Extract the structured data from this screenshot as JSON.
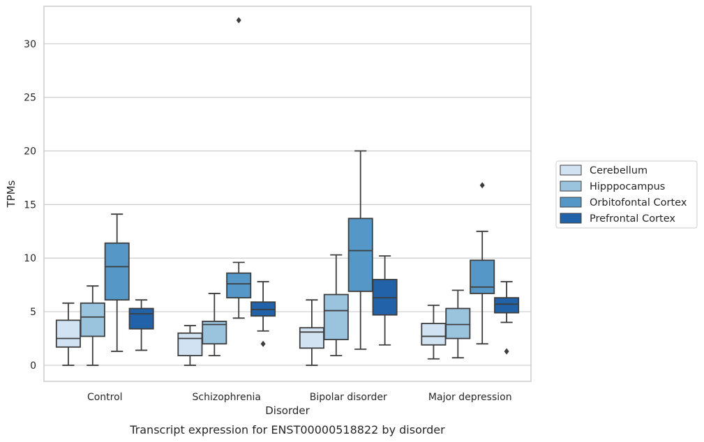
{
  "chart_data": {
    "type": "box",
    "xlabel": "Disorder",
    "ylabel": "TPMs",
    "caption": "Transcript expression for ENST00000518822 by disorder",
    "categories": [
      "Control",
      "Schizophrenia",
      "Bipolar disorder",
      "Major depression"
    ],
    "yticks": [
      "0",
      "5",
      "10",
      "15",
      "20",
      "25",
      "30"
    ],
    "ylim": [
      -1.5,
      33.5
    ],
    "grid": "horizontal",
    "legend_position": "right",
    "series": [
      {
        "name": "Cerebellum",
        "color": "#d1e2f2",
        "boxes": [
          {
            "whisker_low": 0.0,
            "q1": 1.7,
            "median": 2.5,
            "q3": 4.2,
            "whisker_high": 5.8,
            "outliers": []
          },
          {
            "whisker_low": 0.0,
            "q1": 0.9,
            "median": 2.5,
            "q3": 3.0,
            "whisker_high": 3.7,
            "outliers": []
          },
          {
            "whisker_low": 0.0,
            "q1": 1.6,
            "median": 3.1,
            "q3": 3.5,
            "whisker_high": 6.1,
            "outliers": []
          },
          {
            "whisker_low": 0.6,
            "q1": 1.9,
            "median": 2.7,
            "q3": 3.9,
            "whisker_high": 5.6,
            "outliers": []
          }
        ]
      },
      {
        "name": "Hipppocampus",
        "color": "#9ac3de",
        "boxes": [
          {
            "whisker_low": 0.0,
            "q1": 2.7,
            "median": 4.5,
            "q3": 5.8,
            "whisker_high": 7.4,
            "outliers": []
          },
          {
            "whisker_low": 0.9,
            "q1": 2.0,
            "median": 3.8,
            "q3": 4.1,
            "whisker_high": 6.7,
            "outliers": []
          },
          {
            "whisker_low": 0.9,
            "q1": 2.4,
            "median": 5.1,
            "q3": 6.6,
            "whisker_high": 10.3,
            "outliers": []
          },
          {
            "whisker_low": 0.7,
            "q1": 2.5,
            "median": 3.8,
            "q3": 5.3,
            "whisker_high": 7.0,
            "outliers": []
          }
        ]
      },
      {
        "name": "Orbitofontal Cortex",
        "color": "#5597c6",
        "boxes": [
          {
            "whisker_low": 1.3,
            "q1": 6.1,
            "median": 9.2,
            "q3": 11.4,
            "whisker_high": 14.1,
            "outliers": []
          },
          {
            "whisker_low": 4.4,
            "q1": 6.3,
            "median": 7.6,
            "q3": 8.6,
            "whisker_high": 9.6,
            "outliers": [
              32.2
            ]
          },
          {
            "whisker_low": 1.5,
            "q1": 6.9,
            "median": 10.7,
            "q3": 13.7,
            "whisker_high": 20.0,
            "outliers": []
          },
          {
            "whisker_low": 2.0,
            "q1": 6.7,
            "median": 7.3,
            "q3": 9.8,
            "whisker_high": 12.5,
            "outliers": [
              16.8
            ]
          }
        ]
      },
      {
        "name": "Prefrontal Cortex",
        "color": "#2262a8",
        "boxes": [
          {
            "whisker_low": 1.4,
            "q1": 3.4,
            "median": 4.8,
            "q3": 5.3,
            "whisker_high": 6.1,
            "outliers": []
          },
          {
            "whisker_low": 3.2,
            "q1": 4.6,
            "median": 5.2,
            "q3": 5.9,
            "whisker_high": 7.8,
            "outliers": [
              2.0
            ]
          },
          {
            "whisker_low": 1.9,
            "q1": 4.7,
            "median": 6.3,
            "q3": 8.0,
            "whisker_high": 10.2,
            "outliers": []
          },
          {
            "whisker_low": 4.0,
            "q1": 4.9,
            "median": 5.7,
            "q3": 6.3,
            "whisker_high": 7.8,
            "outliers": [
              1.3
            ]
          }
        ]
      }
    ]
  }
}
